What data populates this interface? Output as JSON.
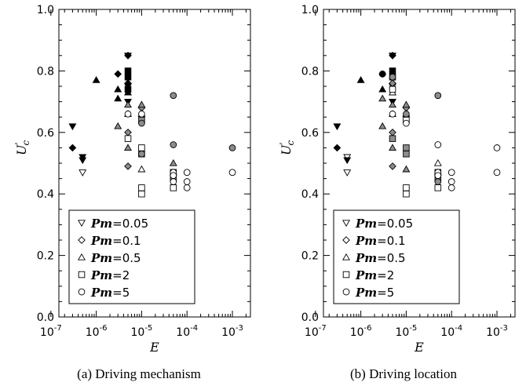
{
  "chart_data": [
    {
      "type": "scatter",
      "caption": "(a) Driving mechanism",
      "xlabel": "E",
      "ylabel": "U'c",
      "xscale": "log",
      "xlim": [
        1.5e-07,
        0.0025
      ],
      "ylim": [
        0.0,
        1.0
      ],
      "x_ticks": [
        1e-07,
        1e-06,
        1e-05,
        0.0001,
        0.001
      ],
      "x_tick_labels": [
        "10-7",
        "10-6",
        "10-5",
        "10-4",
        "10-3"
      ],
      "y_ticks": [
        0.0,
        0.2,
        0.4,
        0.6,
        0.8,
        1.0
      ],
      "y_tick_labels": [
        "0.0",
        "0.2",
        "0.4",
        "0.6",
        "0.8",
        "1.0"
      ],
      "legend": {
        "placement": "lower-left",
        "entries": [
          {
            "marker": "down-triangle",
            "text": "Pm=0.05"
          },
          {
            "marker": "diamond",
            "text": "Pm=0.1"
          },
          {
            "marker": "triangle",
            "text": "Pm=0.5"
          },
          {
            "marker": "square",
            "text": "Pm=2"
          },
          {
            "marker": "circle",
            "text": "Pm=5"
          }
        ]
      },
      "series": [
        {
          "marker": "down-triangle",
          "points": [
            {
              "x": 3e-07,
              "y": 0.62,
              "fill": "black"
            },
            {
              "x": 5e-07,
              "y": 0.52,
              "fill": "black"
            },
            {
              "x": 5e-07,
              "y": 0.51,
              "fill": "black"
            },
            {
              "x": 5e-07,
              "y": 0.47,
              "fill": "white"
            },
            {
              "x": 5e-06,
              "y": 0.85,
              "fill": "black"
            },
            {
              "x": 5e-06,
              "y": 0.75,
              "fill": "black"
            },
            {
              "x": 5e-06,
              "y": 0.7,
              "fill": "black"
            }
          ]
        },
        {
          "marker": "diamond",
          "points": [
            {
              "x": 3e-07,
              "y": 0.55,
              "fill": "black"
            },
            {
              "x": 3e-06,
              "y": 0.79,
              "fill": "black"
            },
            {
              "x": 5e-06,
              "y": 0.85,
              "fill": "black"
            },
            {
              "x": 5e-06,
              "y": 0.76,
              "fill": "black"
            },
            {
              "x": 5e-06,
              "y": 0.6,
              "fill": "gray"
            },
            {
              "x": 5e-06,
              "y": 0.49,
              "fill": "gray"
            },
            {
              "x": 1e-05,
              "y": 0.68,
              "fill": "gray"
            }
          ]
        },
        {
          "marker": "triangle",
          "points": [
            {
              "x": 1e-06,
              "y": 0.77,
              "fill": "black"
            },
            {
              "x": 3e-06,
              "y": 0.74,
              "fill": "black"
            },
            {
              "x": 3e-06,
              "y": 0.71,
              "fill": "black"
            },
            {
              "x": 3e-06,
              "y": 0.62,
              "fill": "gray"
            },
            {
              "x": 5e-06,
              "y": 0.73,
              "fill": "black"
            },
            {
              "x": 5e-06,
              "y": 0.69,
              "fill": "gray"
            },
            {
              "x": 5e-06,
              "y": 0.66,
              "fill": "gray"
            },
            {
              "x": 5e-06,
              "y": 0.55,
              "fill": "gray"
            },
            {
              "x": 1e-05,
              "y": 0.69,
              "fill": "gray"
            },
            {
              "x": 1e-05,
              "y": 0.66,
              "fill": "gray"
            },
            {
              "x": 1e-05,
              "y": 0.48,
              "fill": "white"
            },
            {
              "x": 5e-05,
              "y": 0.5,
              "fill": "gray"
            },
            {
              "x": 5e-05,
              "y": 0.47,
              "fill": "gray"
            }
          ]
        },
        {
          "marker": "square",
          "points": [
            {
              "x": 5e-06,
              "y": 0.8,
              "fill": "black"
            },
            {
              "x": 5e-06,
              "y": 0.78,
              "fill": "black"
            },
            {
              "x": 5e-06,
              "y": 0.74,
              "fill": "black"
            },
            {
              "x": 5e-06,
              "y": 0.58,
              "fill": "white"
            },
            {
              "x": 1e-05,
              "y": 0.64,
              "fill": "gray"
            },
            {
              "x": 1e-05,
              "y": 0.55,
              "fill": "white"
            },
            {
              "x": 1e-05,
              "y": 0.53,
              "fill": "white"
            },
            {
              "x": 1e-05,
              "y": 0.42,
              "fill": "white"
            },
            {
              "x": 1e-05,
              "y": 0.4,
              "fill": "white"
            },
            {
              "x": 5e-05,
              "y": 0.47,
              "fill": "gray"
            },
            {
              "x": 5e-05,
              "y": 0.45,
              "fill": "gray"
            },
            {
              "x": 5e-05,
              "y": 0.42,
              "fill": "white"
            }
          ]
        },
        {
          "marker": "circle",
          "points": [
            {
              "x": 5e-06,
              "y": 0.66,
              "fill": "white"
            },
            {
              "x": 1e-05,
              "y": 0.66,
              "fill": "white"
            },
            {
              "x": 1e-05,
              "y": 0.63,
              "fill": "gray"
            },
            {
              "x": 1e-05,
              "y": 0.53,
              "fill": "gray"
            },
            {
              "x": 5e-05,
              "y": 0.72,
              "fill": "gray"
            },
            {
              "x": 5e-05,
              "y": 0.56,
              "fill": "gray"
            },
            {
              "x": 5e-05,
              "y": 0.47,
              "fill": "white"
            },
            {
              "x": 5e-05,
              "y": 0.46,
              "fill": "white"
            },
            {
              "x": 5e-05,
              "y": 0.44,
              "fill": "white"
            },
            {
              "x": 0.0001,
              "y": 0.47,
              "fill": "white"
            },
            {
              "x": 0.0001,
              "y": 0.44,
              "fill": "white"
            },
            {
              "x": 0.0001,
              "y": 0.42,
              "fill": "white"
            },
            {
              "x": 0.001,
              "y": 0.55,
              "fill": "gray"
            },
            {
              "x": 0.001,
              "y": 0.47,
              "fill": "white"
            }
          ]
        }
      ]
    },
    {
      "type": "scatter",
      "caption": "(b) Driving location",
      "xlabel": "E",
      "ylabel": "U'c",
      "xscale": "log",
      "xlim": [
        1.5e-07,
        0.0025
      ],
      "ylim": [
        0.0,
        1.0
      ],
      "x_ticks": [
        1e-07,
        1e-06,
        1e-05,
        0.0001,
        0.001
      ],
      "x_tick_labels": [
        "10-7",
        "10-6",
        "10-5",
        "10-4",
        "10-3"
      ],
      "y_ticks": [
        0.0,
        0.2,
        0.4,
        0.6,
        0.8,
        1.0
      ],
      "y_tick_labels": [
        "0.0",
        "0.2",
        "0.4",
        "0.6",
        "0.8",
        "1.0"
      ],
      "legend": {
        "placement": "lower-left",
        "entries": [
          {
            "marker": "down-triangle",
            "text": "Pm=0.05"
          },
          {
            "marker": "diamond",
            "text": "Pm=0.1"
          },
          {
            "marker": "triangle",
            "text": "Pm=0.5"
          },
          {
            "marker": "square",
            "text": "Pm=2"
          },
          {
            "marker": "circle",
            "text": "Pm=5"
          }
        ]
      },
      "series": [
        {
          "marker": "down-triangle",
          "points": [
            {
              "x": 3e-07,
              "y": 0.62,
              "fill": "black"
            },
            {
              "x": 5e-07,
              "y": 0.52,
              "fill": "white"
            },
            {
              "x": 5e-07,
              "y": 0.51,
              "fill": "black"
            },
            {
              "x": 5e-07,
              "y": 0.47,
              "fill": "white"
            },
            {
              "x": 5e-06,
              "y": 0.85,
              "fill": "black"
            },
            {
              "x": 5e-06,
              "y": 0.75,
              "fill": "gray"
            },
            {
              "x": 5e-06,
              "y": 0.7,
              "fill": "black"
            }
          ]
        },
        {
          "marker": "diamond",
          "points": [
            {
              "x": 3e-07,
              "y": 0.55,
              "fill": "black"
            },
            {
              "x": 3e-06,
              "y": 0.79,
              "fill": "black"
            },
            {
              "x": 5e-06,
              "y": 0.85,
              "fill": "black"
            },
            {
              "x": 5e-06,
              "y": 0.76,
              "fill": "gray"
            },
            {
              "x": 5e-06,
              "y": 0.6,
              "fill": "gray"
            },
            {
              "x": 5e-06,
              "y": 0.49,
              "fill": "gray"
            },
            {
              "x": 1e-05,
              "y": 0.68,
              "fill": "gray"
            }
          ]
        },
        {
          "marker": "triangle",
          "points": [
            {
              "x": 1e-06,
              "y": 0.77,
              "fill": "black"
            },
            {
              "x": 3e-06,
              "y": 0.74,
              "fill": "black"
            },
            {
              "x": 3e-06,
              "y": 0.71,
              "fill": "gray"
            },
            {
              "x": 3e-06,
              "y": 0.62,
              "fill": "gray"
            },
            {
              "x": 5e-06,
              "y": 0.73,
              "fill": "white"
            },
            {
              "x": 5e-06,
              "y": 0.69,
              "fill": "gray"
            },
            {
              "x": 5e-06,
              "y": 0.66,
              "fill": "gray"
            },
            {
              "x": 5e-06,
              "y": 0.55,
              "fill": "gray"
            },
            {
              "x": 1e-05,
              "y": 0.69,
              "fill": "gray"
            },
            {
              "x": 1e-05,
              "y": 0.66,
              "fill": "gray"
            },
            {
              "x": 1e-05,
              "y": 0.48,
              "fill": "gray"
            },
            {
              "x": 5e-05,
              "y": 0.5,
              "fill": "white"
            },
            {
              "x": 5e-05,
              "y": 0.47,
              "fill": "gray"
            }
          ]
        },
        {
          "marker": "square",
          "points": [
            {
              "x": 5e-06,
              "y": 0.8,
              "fill": "black"
            },
            {
              "x": 5e-06,
              "y": 0.78,
              "fill": "gray"
            },
            {
              "x": 5e-06,
              "y": 0.74,
              "fill": "white"
            },
            {
              "x": 5e-06,
              "y": 0.58,
              "fill": "gray"
            },
            {
              "x": 1e-05,
              "y": 0.64,
              "fill": "white"
            },
            {
              "x": 1e-05,
              "y": 0.55,
              "fill": "gray"
            },
            {
              "x": 1e-05,
              "y": 0.53,
              "fill": "gray"
            },
            {
              "x": 1e-05,
              "y": 0.42,
              "fill": "white"
            },
            {
              "x": 1e-05,
              "y": 0.4,
              "fill": "white"
            },
            {
              "x": 5e-05,
              "y": 0.47,
              "fill": "gray"
            },
            {
              "x": 5e-05,
              "y": 0.45,
              "fill": "gray"
            },
            {
              "x": 5e-05,
              "y": 0.42,
              "fill": "white"
            }
          ]
        },
        {
          "marker": "circle",
          "points": [
            {
              "x": 3e-06,
              "y": 0.79,
              "fill": "black"
            },
            {
              "x": 5e-06,
              "y": 0.78,
              "fill": "gray"
            },
            {
              "x": 5e-06,
              "y": 0.66,
              "fill": "white"
            },
            {
              "x": 1e-05,
              "y": 0.66,
              "fill": "gray"
            },
            {
              "x": 1e-05,
              "y": 0.63,
              "fill": "white"
            },
            {
              "x": 5e-05,
              "y": 0.72,
              "fill": "gray"
            },
            {
              "x": 5e-05,
              "y": 0.56,
              "fill": "white"
            },
            {
              "x": 5e-05,
              "y": 0.47,
              "fill": "white"
            },
            {
              "x": 5e-05,
              "y": 0.46,
              "fill": "white"
            },
            {
              "x": 5e-05,
              "y": 0.44,
              "fill": "gray"
            },
            {
              "x": 0.0001,
              "y": 0.47,
              "fill": "white"
            },
            {
              "x": 0.0001,
              "y": 0.44,
              "fill": "white"
            },
            {
              "x": 0.0001,
              "y": 0.42,
              "fill": "white"
            },
            {
              "x": 0.001,
              "y": 0.55,
              "fill": "white"
            },
            {
              "x": 0.001,
              "y": 0.47,
              "fill": "white"
            }
          ]
        }
      ]
    }
  ],
  "colors": {
    "black": "#000000",
    "gray": "#8c8c8c",
    "white": "#ffffff"
  }
}
